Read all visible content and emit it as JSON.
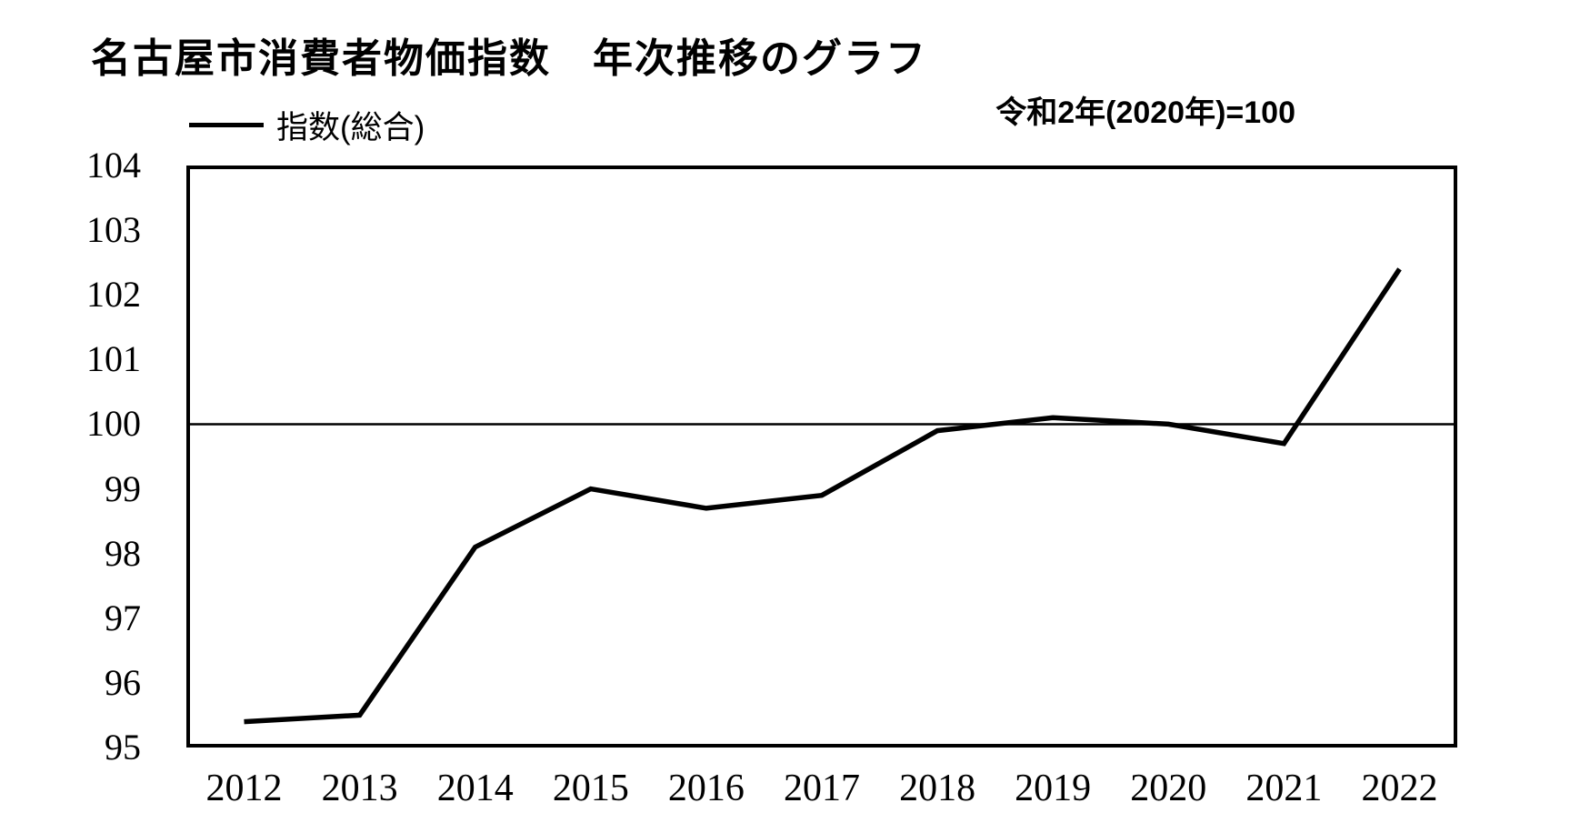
{
  "title": "名古屋市消費者物価指数　年次推移のグラフ",
  "note": "令和2年(2020年)=100",
  "legend": {
    "label": "指数(総合)"
  },
  "colors": {
    "ink": "#000000",
    "background": "#ffffff"
  },
  "chart_data": {
    "type": "line",
    "title": "名古屋市消費者物価指数　年次推移のグラフ",
    "subtitle": "令和2年(2020年)=100",
    "categories": [
      "2012",
      "2013",
      "2014",
      "2015",
      "2016",
      "2017",
      "2018",
      "2019",
      "2020",
      "2021",
      "2022"
    ],
    "series": [
      {
        "name": "指数(総合)",
        "values": [
          95.4,
          95.5,
          98.1,
          99.0,
          98.7,
          98.9,
          99.9,
          100.1,
          100.0,
          99.7,
          102.4
        ]
      }
    ],
    "yticks": [
      95,
      96,
      97,
      98,
      99,
      100,
      101,
      102,
      103,
      104
    ],
    "ylim": [
      95,
      104
    ],
    "reference_line": 100,
    "xlabel": "",
    "ylabel": "",
    "grid": "off",
    "legend_position": "top-left",
    "line_color": "#000000",
    "line_width": 5.5
  }
}
